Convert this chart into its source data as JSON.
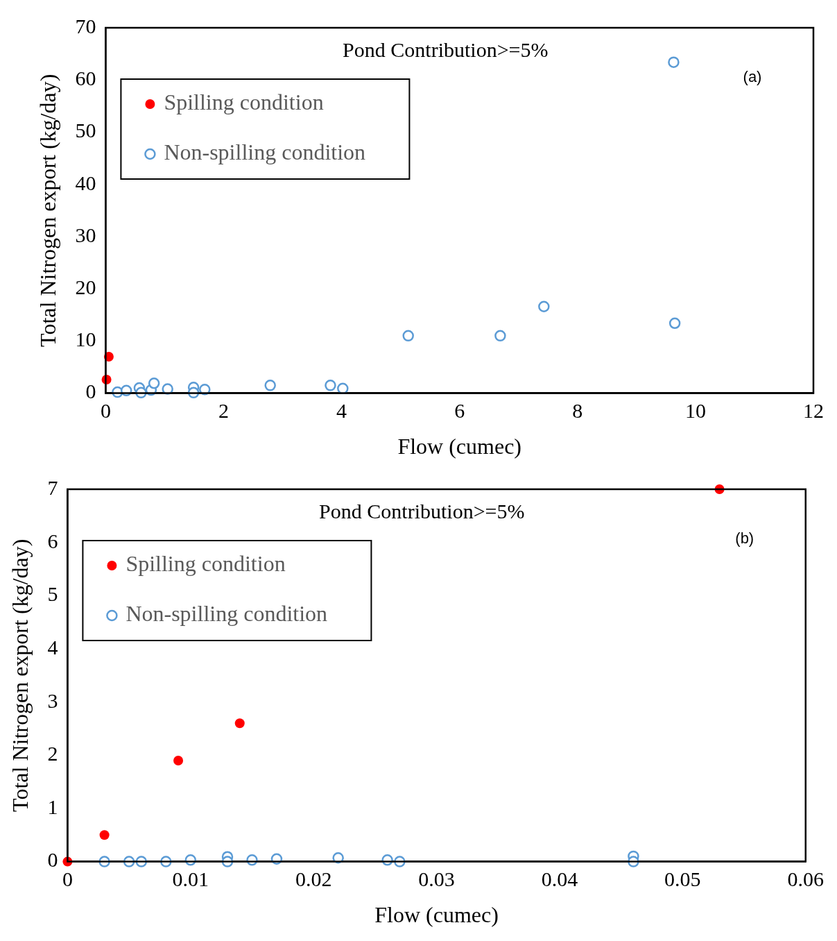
{
  "chart_data": [
    {
      "type": "scatter",
      "title": "Pond Contribution>=5%",
      "xlabel": "Flow (cumec)",
      "ylabel": "Total Nitrogen export (kg/day)",
      "annotations": [
        "(a)"
      ],
      "xlim": [
        0,
        12
      ],
      "xticks": [
        0,
        2,
        4,
        6,
        8,
        10,
        12
      ],
      "ylim": [
        0,
        70
      ],
      "yticks": [
        0,
        10,
        20,
        30,
        40,
        50,
        60,
        70
      ],
      "grid": false,
      "legend": "top left",
      "marker": "circle",
      "series": [
        {
          "name": "Spilling condition",
          "color": "#ff0000",
          "x": [
            0.014,
            0.053
          ],
          "values": [
            2.6,
            7
          ]
        },
        {
          "name": "Non-spilling condition",
          "color": "#5b9bd5",
          "x": [
            0.2,
            0.35,
            0.57,
            0.6,
            0.77,
            0.82,
            1.05,
            1.49,
            1.49,
            1.68,
            2.79,
            3.81,
            4.02,
            5.13,
            6.69,
            7.43,
            9.63,
            9.65
          ],
          "values": [
            0.2,
            0.5,
            1.0,
            0.1,
            0.6,
            1.9,
            0.8,
            1.1,
            0.1,
            0.7,
            1.5,
            1.5,
            0.9,
            11.0,
            11.0,
            16.6,
            63.4,
            13.4
          ]
        }
      ]
    },
    {
      "type": "scatter",
      "title": "Pond Contribution>=5%",
      "xlabel": "Flow (cumec)",
      "ylabel": "Total Nitrogen export (kg/day)",
      "annotations": [
        "(b)"
      ],
      "xlim": [
        0,
        0.06
      ],
      "xticks": [
        0,
        0.01,
        0.02,
        0.03,
        0.04,
        0.05,
        0.06
      ],
      "ylim": [
        0,
        7
      ],
      "yticks": [
        0,
        1,
        2,
        3,
        4,
        5,
        6,
        7
      ],
      "grid": false,
      "legend": "top left",
      "marker": "circle",
      "series": [
        {
          "name": "Spilling condition",
          "color": "#ff0000",
          "x": [
            0,
            0.003,
            0.009,
            0.014,
            0.053
          ],
          "values": [
            0,
            0.5,
            1.9,
            2.6,
            7
          ]
        },
        {
          "name": "Non-spilling condition",
          "color": "#5b9bd5",
          "x": [
            0.003,
            0.005,
            0.006,
            0.008,
            0.01,
            0.013,
            0.013,
            0.015,
            0.017,
            0.022,
            0.026,
            0.027,
            0.046,
            0.046
          ],
          "values": [
            0,
            0,
            0,
            0,
            0.03,
            0.09,
            0,
            0.03,
            0.05,
            0.07,
            0.03,
            0,
            0.1,
            0
          ]
        }
      ]
    }
  ]
}
